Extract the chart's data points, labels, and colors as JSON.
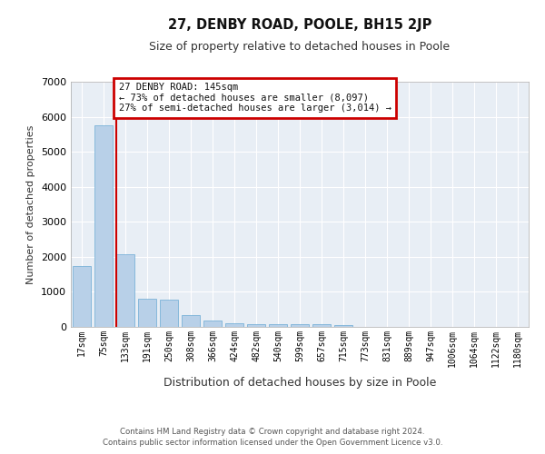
{
  "title_line1": "27, DENBY ROAD, POOLE, BH15 2JP",
  "title_line2": "Size of property relative to detached houses in Poole",
  "xlabel": "Distribution of detached houses by size in Poole",
  "ylabel": "Number of detached properties",
  "bar_labels": [
    "17sqm",
    "75sqm",
    "133sqm",
    "191sqm",
    "250sqm",
    "308sqm",
    "366sqm",
    "424sqm",
    "482sqm",
    "540sqm",
    "599sqm",
    "657sqm",
    "715sqm",
    "773sqm",
    "831sqm",
    "889sqm",
    "947sqm",
    "1006sqm",
    "1064sqm",
    "1122sqm",
    "1180sqm"
  ],
  "bar_values": [
    1750,
    5750,
    2075,
    800,
    790,
    340,
    175,
    115,
    90,
    80,
    65,
    70,
    60,
    0,
    0,
    0,
    0,
    0,
    0,
    0,
    0
  ],
  "bar_color": "#b8d0e8",
  "bar_edgecolor": "#6aaad4",
  "annotation_line1": "27 DENBY ROAD: 145sqm",
  "annotation_line2": "← 73% of detached houses are smaller (8,097)",
  "annotation_line3": "27% of semi-detached houses are larger (3,014) →",
  "vline_color": "#cc0000",
  "annotation_box_edgecolor": "#cc0000",
  "background_color": "#ffffff",
  "plot_bg_color": "#e8eef5",
  "grid_color": "#ffffff",
  "ylim": [
    0,
    7000
  ],
  "yticks": [
    0,
    1000,
    2000,
    3000,
    4000,
    5000,
    6000,
    7000
  ],
  "footer_line1": "Contains HM Land Registry data © Crown copyright and database right 2024.",
  "footer_line2": "Contains public sector information licensed under the Open Government Licence v3.0."
}
